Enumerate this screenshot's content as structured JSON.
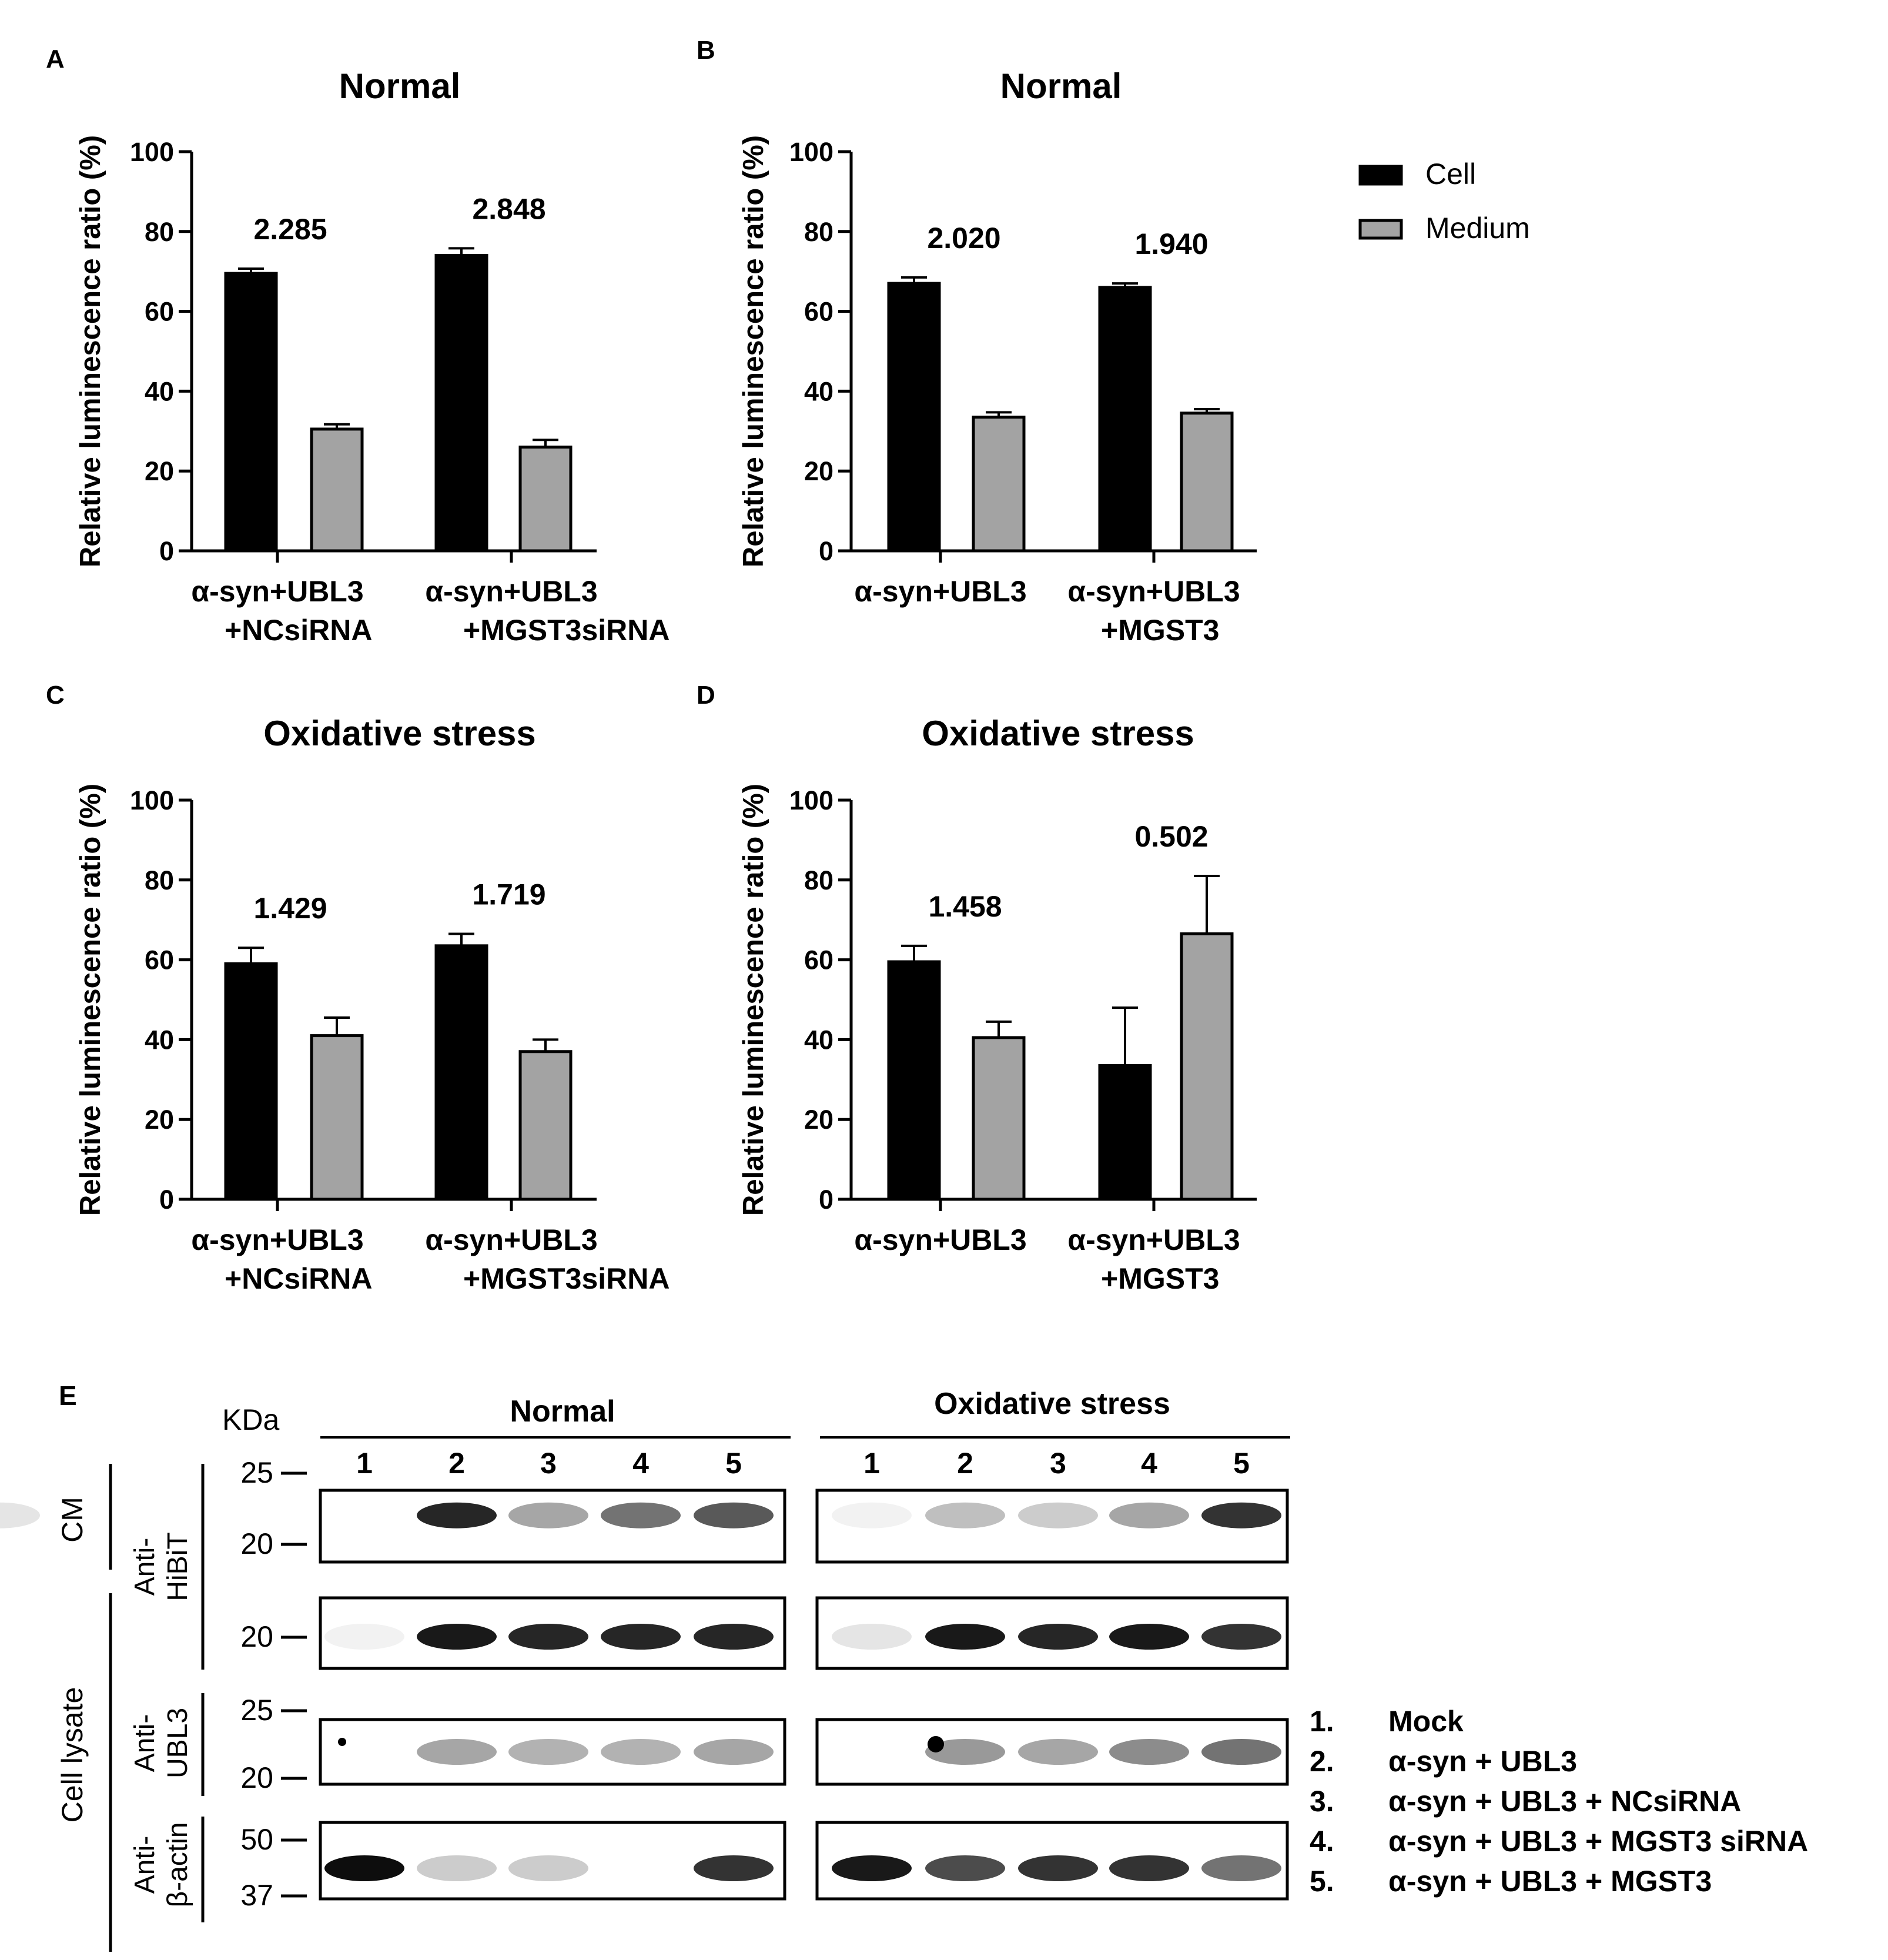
{
  "figure": {
    "legend": [
      {
        "name": "Cell",
        "color": "#000000"
      },
      {
        "name": "Medium",
        "color": "#a3a3a3"
      }
    ],
    "blot": {
      "panel_label": "E",
      "unit_label": "KDa",
      "conditions": [
        "Normal",
        "Oxidative stress"
      ],
      "lanes": [
        "1",
        "2",
        "3",
        "4",
        "5"
      ],
      "fraction_labels": [
        "CM",
        "Cell lysate"
      ],
      "antibodies": [
        {
          "line1": "Anti-",
          "line2": "HiBiT"
        },
        {
          "line1": "Anti-",
          "line2": "UBL3"
        },
        {
          "line1": "Anti-",
          "line2": "β-actin"
        }
      ],
      "markers": {
        "cm_hibit": [
          "25",
          "20"
        ],
        "lysate_hibit": [
          "20"
        ],
        "ubl3": [
          "25",
          "20"
        ],
        "actin": [
          "50",
          "37"
        ]
      },
      "lane_legend": [
        {
          "num": "1.",
          "text": "Mock"
        },
        {
          "num": "2.",
          "text": "α-syn + UBL3"
        },
        {
          "num": "3.",
          "text": "α-syn + UBL3 + NCsiRNA"
        },
        {
          "num": "4.",
          "text": "α-syn + UBL3 + MGST3 siRNA"
        },
        {
          "num": "5.",
          "text": "α-syn + UBL3 + MGST3"
        }
      ]
    }
  },
  "chart_data": [
    {
      "panel": "A",
      "type": "bar",
      "title": "Normal",
      "ylabel": "Relative luminescence ratio (%)",
      "ylim": [
        0,
        100
      ],
      "yticks": [
        "0",
        "20",
        "40",
        "60",
        "80",
        "100"
      ],
      "categories": [
        {
          "line1": "α-syn+UBL3",
          "line2": "+NCsiRNA"
        },
        {
          "line1": "α-syn+UBL3",
          "line2": "+MGST3siRNA"
        }
      ],
      "series": [
        {
          "name": "Cell",
          "values": [
            69.5,
            74
          ],
          "errors": [
            1.2,
            1.8
          ]
        },
        {
          "name": "Medium",
          "values": [
            30.5,
            26
          ],
          "errors": [
            1.2,
            1.8
          ]
        }
      ],
      "annotations": [
        "2.285",
        "2.848"
      ]
    },
    {
      "panel": "B",
      "type": "bar",
      "title": "Normal",
      "ylabel": "Relative luminescence ratio (%)",
      "ylim": [
        0,
        100
      ],
      "yticks": [
        "0",
        "20",
        "40",
        "60",
        "80",
        "100"
      ],
      "categories": [
        {
          "line1": "α-syn+UBL3",
          "line2": ""
        },
        {
          "line1": "α-syn+UBL3",
          "line2": "+MGST3"
        }
      ],
      "series": [
        {
          "name": "Cell",
          "values": [
            67,
            66
          ],
          "errors": [
            1.5,
            1.0
          ]
        },
        {
          "name": "Medium",
          "values": [
            33.5,
            34.5
          ],
          "errors": [
            1.2,
            1.0
          ]
        }
      ],
      "annotations": [
        "2.020",
        "1.940"
      ]
    },
    {
      "panel": "C",
      "type": "bar",
      "title": "Oxidative stress",
      "ylabel": "Relative luminescence ratio (%)",
      "ylim": [
        0,
        100
      ],
      "yticks": [
        "0",
        "20",
        "40",
        "60",
        "80",
        "100"
      ],
      "categories": [
        {
          "line1": "α-syn+UBL3",
          "line2": "+NCsiRNA"
        },
        {
          "line1": "α-syn+UBL3",
          "line2": "+MGST3siRNA"
        }
      ],
      "series": [
        {
          "name": "Cell",
          "values": [
            59,
            63.5
          ],
          "errors": [
            4.0,
            3.0
          ]
        },
        {
          "name": "Medium",
          "values": [
            41,
            37
          ],
          "errors": [
            4.5,
            3.0
          ]
        }
      ],
      "annotations": [
        "1.429",
        "1.719"
      ]
    },
    {
      "panel": "D",
      "type": "bar",
      "title": "Oxidative stress",
      "ylabel": "Relative luminescence ratio (%)",
      "ylim": [
        0,
        100
      ],
      "yticks": [
        "0",
        "20",
        "40",
        "60",
        "80",
        "100"
      ],
      "categories": [
        {
          "line1": "α-syn+UBL3",
          "line2": ""
        },
        {
          "line1": "α-syn+UBL3",
          "line2": "+MGST3"
        }
      ],
      "series": [
        {
          "name": "Cell",
          "values": [
            59.5,
            33.5
          ],
          "errors": [
            4.0,
            14.5
          ]
        },
        {
          "name": "Medium",
          "values": [
            40.5,
            66.5
          ],
          "errors": [
            4.0,
            14.5
          ]
        }
      ],
      "annotations": [
        "1.458",
        "0.502"
      ]
    }
  ]
}
